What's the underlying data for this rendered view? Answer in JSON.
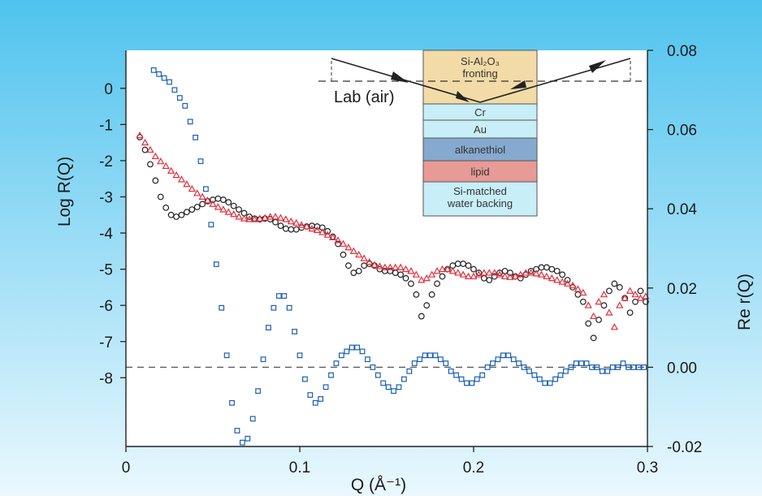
{
  "colors": {
    "background_top": "#4fc3ee",
    "background_bottom": "#eaf8fe",
    "plot_area": "#ffffff",
    "series_black": "#222222",
    "series_red": "#e0303c",
    "series_blue": "#1a5fb4",
    "fronting": "#f2dba6",
    "cr": "#c8eef8",
    "au": "#c8eef8",
    "alkanethiol": "#86a9cf",
    "lipid": "#e79a96",
    "water": "#c8eef8"
  },
  "inset": {
    "lab_label": "Lab (air)",
    "layers": [
      {
        "name": "fronting",
        "label_a": "Si-Al₂O₃",
        "label_b": "fronting"
      },
      {
        "name": "cr",
        "label_a": "Cr"
      },
      {
        "name": "au",
        "label_a": "Au"
      },
      {
        "name": "alkanethiol",
        "label_a": "alkanethiol"
      },
      {
        "name": "lipid",
        "label_a": "lipid"
      },
      {
        "name": "water",
        "label_a": "Si-matched",
        "label_b": "water backing"
      }
    ]
  },
  "chart_data": {
    "type": "scatter",
    "xlabel": "Q (Å⁻¹)",
    "ylabel_left": "Log R(Q)",
    "ylabel_right": "Re r(Q)",
    "xlim": [
      0,
      0.3
    ],
    "ylim_left": [
      -9.9,
      1.05
    ],
    "ylim_right": [
      -0.02,
      0.08
    ],
    "x_ticks": [
      "0",
      "0.1",
      "0.2",
      "0.3"
    ],
    "x_tick_values": [
      0,
      0.1,
      0.2,
      0.3
    ],
    "y_left_ticks": [
      "0",
      "-1",
      "-2",
      "-3",
      "-4",
      "-5",
      "-6",
      "-7",
      "-8"
    ],
    "y_left_tick_values": [
      0,
      -1,
      -2,
      -3,
      -4,
      -5,
      -6,
      -7,
      -8
    ],
    "y_right_ticks": [
      "0.08",
      "0.06",
      "0.04",
      "0.02",
      "0.00",
      "-0.02"
    ],
    "y_right_tick_values": [
      0.08,
      0.06,
      0.04,
      0.02,
      0.0,
      -0.02
    ],
    "reference_line_right": 0.0,
    "series": [
      {
        "marker": "circle",
        "axis": "left",
        "color": "#222222",
        "x": [
          0.008,
          0.011,
          0.014,
          0.017,
          0.02,
          0.023,
          0.026,
          0.029,
          0.032,
          0.035,
          0.038,
          0.041,
          0.044,
          0.047,
          0.05,
          0.053,
          0.056,
          0.059,
          0.062,
          0.065,
          0.068,
          0.071,
          0.074,
          0.077,
          0.08,
          0.083,
          0.086,
          0.089,
          0.092,
          0.095,
          0.098,
          0.101,
          0.104,
          0.107,
          0.11,
          0.113,
          0.116,
          0.119,
          0.122,
          0.125,
          0.128,
          0.131,
          0.134,
          0.137,
          0.14,
          0.143,
          0.146,
          0.149,
          0.152,
          0.155,
          0.158,
          0.161,
          0.164,
          0.167,
          0.17,
          0.173,
          0.176,
          0.179,
          0.182,
          0.185,
          0.188,
          0.191,
          0.194,
          0.197,
          0.2,
          0.203,
          0.206,
          0.209,
          0.212,
          0.215,
          0.218,
          0.221,
          0.224,
          0.227,
          0.23,
          0.233,
          0.236,
          0.239,
          0.242,
          0.245,
          0.248,
          0.251,
          0.254,
          0.257,
          0.26,
          0.263,
          0.266,
          0.269,
          0.272,
          0.275,
          0.278,
          0.281,
          0.284,
          0.287,
          0.29,
          0.293,
          0.296,
          0.299
        ],
        "y": [
          -1.35,
          -1.7,
          -2.1,
          -2.55,
          -3.0,
          -3.3,
          -3.5,
          -3.55,
          -3.5,
          -3.42,
          -3.35,
          -3.28,
          -3.2,
          -3.12,
          -3.08,
          -3.05,
          -3.08,
          -3.15,
          -3.25,
          -3.35,
          -3.45,
          -3.55,
          -3.6,
          -3.62,
          -3.6,
          -3.62,
          -3.7,
          -3.8,
          -3.88,
          -3.9,
          -3.9,
          -3.85,
          -3.82,
          -3.8,
          -3.82,
          -3.85,
          -3.95,
          -4.1,
          -4.3,
          -4.6,
          -4.9,
          -5.1,
          -5.05,
          -4.9,
          -4.85,
          -4.9,
          -5.0,
          -5.05,
          -5.05,
          -5.1,
          -5.15,
          -5.25,
          -5.4,
          -5.7,
          -6.3,
          -6.0,
          -5.7,
          -5.4,
          -5.2,
          -5.0,
          -4.9,
          -4.85,
          -4.85,
          -4.9,
          -5.0,
          -5.1,
          -5.25,
          -5.3,
          -5.2,
          -5.1,
          -5.05,
          -5.1,
          -5.2,
          -5.25,
          -5.15,
          -5.05,
          -5.0,
          -4.95,
          -4.95,
          -5.0,
          -5.05,
          -5.15,
          -5.3,
          -5.5,
          -5.7,
          -5.9,
          -6.5,
          -6.9,
          -6.4,
          -6.0,
          -5.6,
          -5.4,
          -5.5,
          -5.8,
          -6.2,
          -5.9,
          -5.6,
          -5.9
        ]
      },
      {
        "marker": "triangle",
        "axis": "left",
        "color": "#e0303c",
        "x": [
          0.008,
          0.011,
          0.014,
          0.017,
          0.02,
          0.023,
          0.026,
          0.029,
          0.032,
          0.035,
          0.038,
          0.041,
          0.044,
          0.047,
          0.05,
          0.053,
          0.056,
          0.059,
          0.062,
          0.065,
          0.068,
          0.071,
          0.074,
          0.077,
          0.08,
          0.083,
          0.086,
          0.089,
          0.092,
          0.095,
          0.098,
          0.101,
          0.104,
          0.107,
          0.11,
          0.113,
          0.116,
          0.119,
          0.122,
          0.125,
          0.128,
          0.131,
          0.134,
          0.137,
          0.14,
          0.143,
          0.146,
          0.149,
          0.152,
          0.155,
          0.158,
          0.161,
          0.164,
          0.167,
          0.17,
          0.173,
          0.176,
          0.179,
          0.182,
          0.185,
          0.188,
          0.191,
          0.194,
          0.197,
          0.2,
          0.203,
          0.206,
          0.209,
          0.212,
          0.215,
          0.218,
          0.221,
          0.224,
          0.227,
          0.23,
          0.233,
          0.236,
          0.239,
          0.242,
          0.245,
          0.248,
          0.251,
          0.254,
          0.257,
          0.26,
          0.263,
          0.266,
          0.269,
          0.272,
          0.275,
          0.278,
          0.281,
          0.284,
          0.287,
          0.29,
          0.293,
          0.296,
          0.299
        ],
        "y": [
          -1.3,
          -1.5,
          -1.7,
          -1.88,
          -2.02,
          -2.15,
          -2.28,
          -2.4,
          -2.52,
          -2.65,
          -2.78,
          -2.9,
          -3.0,
          -3.1,
          -3.2,
          -3.28,
          -3.35,
          -3.42,
          -3.48,
          -3.55,
          -3.6,
          -3.62,
          -3.62,
          -3.6,
          -3.58,
          -3.55,
          -3.55,
          -3.58,
          -3.62,
          -3.68,
          -3.72,
          -3.78,
          -3.82,
          -3.88,
          -3.92,
          -3.98,
          -4.05,
          -4.12,
          -4.2,
          -4.3,
          -4.4,
          -4.5,
          -4.6,
          -4.7,
          -4.8,
          -4.88,
          -4.92,
          -4.95,
          -4.95,
          -4.95,
          -4.95,
          -5.0,
          -5.05,
          -5.15,
          -5.3,
          -5.25,
          -5.15,
          -5.05,
          -5.0,
          -5.0,
          -5.05,
          -5.1,
          -5.15,
          -5.2,
          -5.2,
          -5.15,
          -5.1,
          -5.1,
          -5.1,
          -5.15,
          -5.2,
          -5.22,
          -5.2,
          -5.15,
          -5.1,
          -5.1,
          -5.12,
          -5.15,
          -5.2,
          -5.25,
          -5.3,
          -5.35,
          -5.4,
          -5.45,
          -5.55,
          -5.65,
          -6.0,
          -6.3,
          -5.9,
          -5.7,
          -6.2,
          -6.6,
          -6.0,
          -5.8,
          -5.6,
          -5.7,
          -5.8,
          -5.75
        ]
      },
      {
        "marker": "square",
        "axis": "right",
        "color": "#1a5fb4",
        "x": [
          0.016,
          0.019,
          0.022,
          0.025,
          0.028,
          0.031,
          0.034,
          0.037,
          0.04,
          0.043,
          0.046,
          0.049,
          0.052,
          0.055,
          0.058,
          0.061,
          0.064,
          0.067,
          0.07,
          0.073,
          0.076,
          0.079,
          0.082,
          0.085,
          0.088,
          0.091,
          0.094,
          0.097,
          0.1,
          0.103,
          0.106,
          0.109,
          0.112,
          0.115,
          0.118,
          0.121,
          0.124,
          0.127,
          0.13,
          0.133,
          0.136,
          0.139,
          0.142,
          0.145,
          0.148,
          0.151,
          0.154,
          0.157,
          0.16,
          0.163,
          0.166,
          0.169,
          0.172,
          0.175,
          0.178,
          0.181,
          0.184,
          0.187,
          0.19,
          0.193,
          0.196,
          0.199,
          0.202,
          0.205,
          0.208,
          0.211,
          0.214,
          0.217,
          0.22,
          0.223,
          0.226,
          0.229,
          0.232,
          0.235,
          0.238,
          0.241,
          0.244,
          0.247,
          0.25,
          0.253,
          0.256,
          0.259,
          0.262,
          0.265,
          0.268,
          0.271,
          0.274,
          0.277,
          0.28,
          0.283,
          0.286,
          0.289,
          0.292,
          0.295,
          0.298
        ],
        "y": [
          0.075,
          0.074,
          0.073,
          0.072,
          0.07,
          0.068,
          0.066,
          0.062,
          0.058,
          0.052,
          0.045,
          0.036,
          0.026,
          0.015,
          0.003,
          -0.009,
          -0.016,
          -0.019,
          -0.018,
          -0.013,
          -0.006,
          0.002,
          0.01,
          0.015,
          0.018,
          0.018,
          0.015,
          0.009,
          0.003,
          -0.003,
          -0.007,
          -0.009,
          -0.008,
          -0.005,
          -0.002,
          0.001,
          0.003,
          0.004,
          0.005,
          0.005,
          0.004,
          0.002,
          0.0,
          -0.002,
          -0.004,
          -0.005,
          -0.006,
          -0.005,
          -0.003,
          -0.001,
          0.001,
          0.002,
          0.003,
          0.003,
          0.003,
          0.002,
          0.001,
          -0.001,
          -0.002,
          -0.003,
          -0.004,
          -0.004,
          -0.003,
          -0.002,
          0.0,
          0.001,
          0.002,
          0.003,
          0.003,
          0.002,
          0.001,
          0.0,
          -0.001,
          -0.002,
          -0.003,
          -0.004,
          -0.004,
          -0.003,
          -0.002,
          -0.001,
          0.0,
          0.001,
          0.001,
          0.001,
          0.0,
          0.0,
          -0.001,
          -0.001,
          0.0,
          0.0,
          0.001,
          0.0,
          0.0,
          0.0,
          0.0
        ]
      }
    ]
  }
}
